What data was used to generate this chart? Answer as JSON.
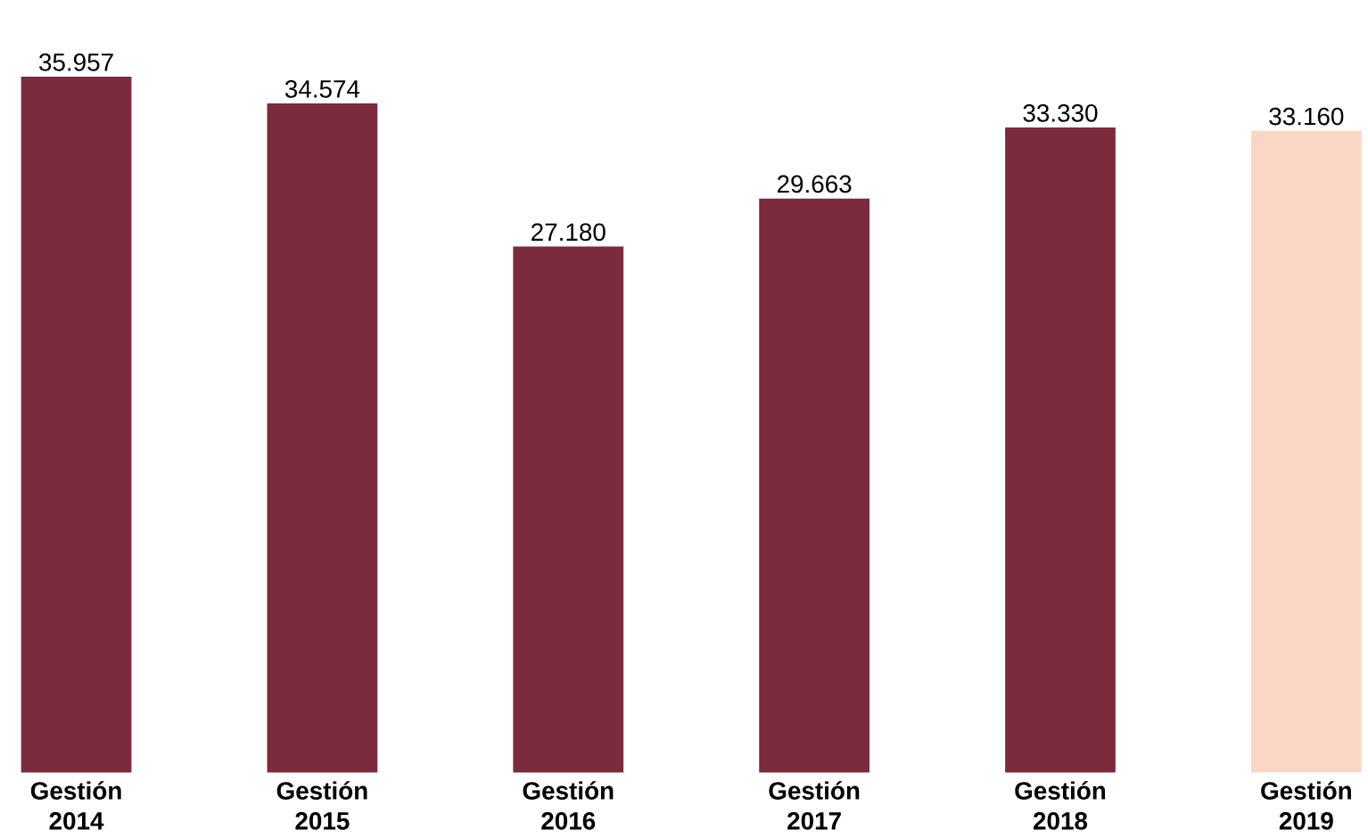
{
  "chart_data": {
    "type": "bar",
    "categories": [
      "Gestión 2014",
      "Gestión 2015",
      "Gestión 2016",
      "Gestión 2017",
      "Gestión 2018",
      "Gestión 2019"
    ],
    "values": [
      35957,
      34574,
      27180,
      29663,
      33330,
      33160
    ],
    "value_labels": [
      "35.957",
      "34.574",
      "27.180",
      "29.663",
      "33.330",
      "33.160"
    ],
    "colors": [
      "#7b2b3b",
      "#7b2b3b",
      "#7b2b3b",
      "#7b2b3b",
      "#7b2b3b",
      "#fbd6c4"
    ]
  }
}
